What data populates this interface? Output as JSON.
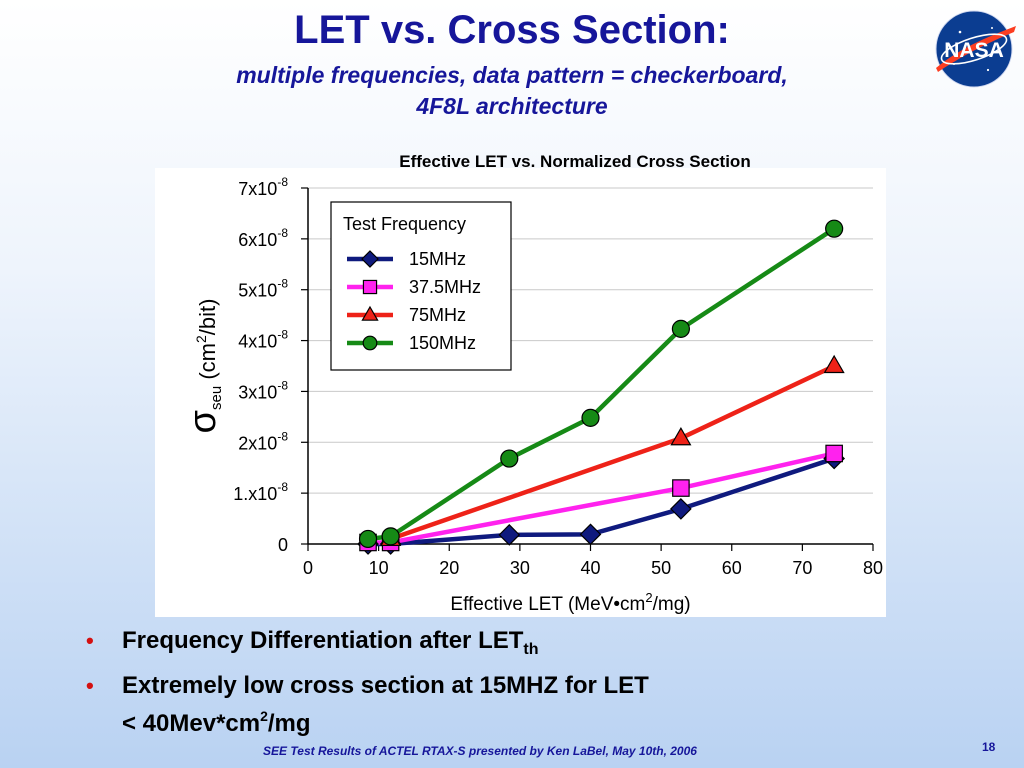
{
  "slide": {
    "title": "LET vs. Cross Section:",
    "subtitle_line1": "multiple frequencies, data pattern = checkerboard,",
    "subtitle_line2": "4F8L architecture",
    "logo_text": "NASA",
    "bullets": [
      {
        "text": "Frequency Differentiation after LET",
        "subscript": "th"
      },
      {
        "line1": "Extremely low cross section at 15MHZ for LET",
        "line2_pre": "< 40Mev*cm",
        "line2_sup": "2",
        "line2_post": "/mg"
      }
    ],
    "footer": "SEE Test Results of ACTEL RTAX-S presented by Ken LaBel, May 10th, 2006",
    "page_number": "18"
  },
  "chart_data": {
    "type": "line",
    "title": "Effective LET vs. Normalized Cross Section",
    "xlabel_pre": "Effective LET (MeV•cm",
    "xlabel_sup": "2",
    "xlabel_post": "/mg)",
    "ylabel_sigma": "σ",
    "ylabel_sub": "seu",
    "ylabel_rest": " (cm",
    "ylabel_sup": "2",
    "ylabel_end": "/bit)",
    "xlim": [
      0,
      80
    ],
    "ylim": [
      0,
      7e-08
    ],
    "x_ticks": [
      0,
      10,
      20,
      30,
      40,
      50,
      60,
      70,
      80
    ],
    "x_tick_labels": [
      "0",
      "10",
      "20",
      "30",
      "40",
      "50",
      "60",
      "70",
      "80"
    ],
    "y_ticks": [
      0,
      1e-08,
      2e-08,
      3e-08,
      4e-08,
      5e-08,
      6e-08,
      7e-08
    ],
    "y_tick_labels": [
      {
        "base": "0",
        "exp": ""
      },
      {
        "base": "1.x10",
        "exp": "-8"
      },
      {
        "base": "2x10",
        "exp": "-8"
      },
      {
        "base": "3x10",
        "exp": "-8"
      },
      {
        "base": "4x10",
        "exp": "-8"
      },
      {
        "base": "5x10",
        "exp": "-8"
      },
      {
        "base": "6x10",
        "exp": "-8"
      },
      {
        "base": "7x10",
        "exp": "-8"
      }
    ],
    "grid": "horizontal",
    "legend_title": "Test Frequency",
    "legend_position": "top-left",
    "series": [
      {
        "name": "15MHz",
        "color": "#0f1a7e",
        "marker": "diamond",
        "x": [
          8.5,
          11.7,
          28.5,
          40.0,
          52.8,
          74.5
        ],
        "y": [
          0.0,
          0.0,
          1.8e-09,
          1.9e-09,
          6.9e-09,
          1.68e-08
        ]
      },
      {
        "name": "37.5MHz",
        "color": "#ff22ee",
        "marker": "square",
        "x": [
          8.5,
          11.7,
          52.8,
          74.5
        ],
        "y": [
          3e-10,
          3e-10,
          1.1e-08,
          1.78e-08
        ]
      },
      {
        "name": "75MHz",
        "color": "#ee2218",
        "marker": "triangle",
        "x": [
          11.7,
          52.8,
          74.5
        ],
        "y": [
          1e-09,
          2.08e-08,
          3.5e-08
        ]
      },
      {
        "name": "150MHz",
        "color": "#168a16",
        "marker": "circle",
        "x": [
          8.5,
          11.7,
          28.5,
          40.0,
          52.8,
          74.5
        ],
        "y": [
          1e-09,
          1.5e-09,
          1.68e-08,
          2.48e-08,
          4.23e-08,
          6.2e-08
        ]
      }
    ]
  }
}
